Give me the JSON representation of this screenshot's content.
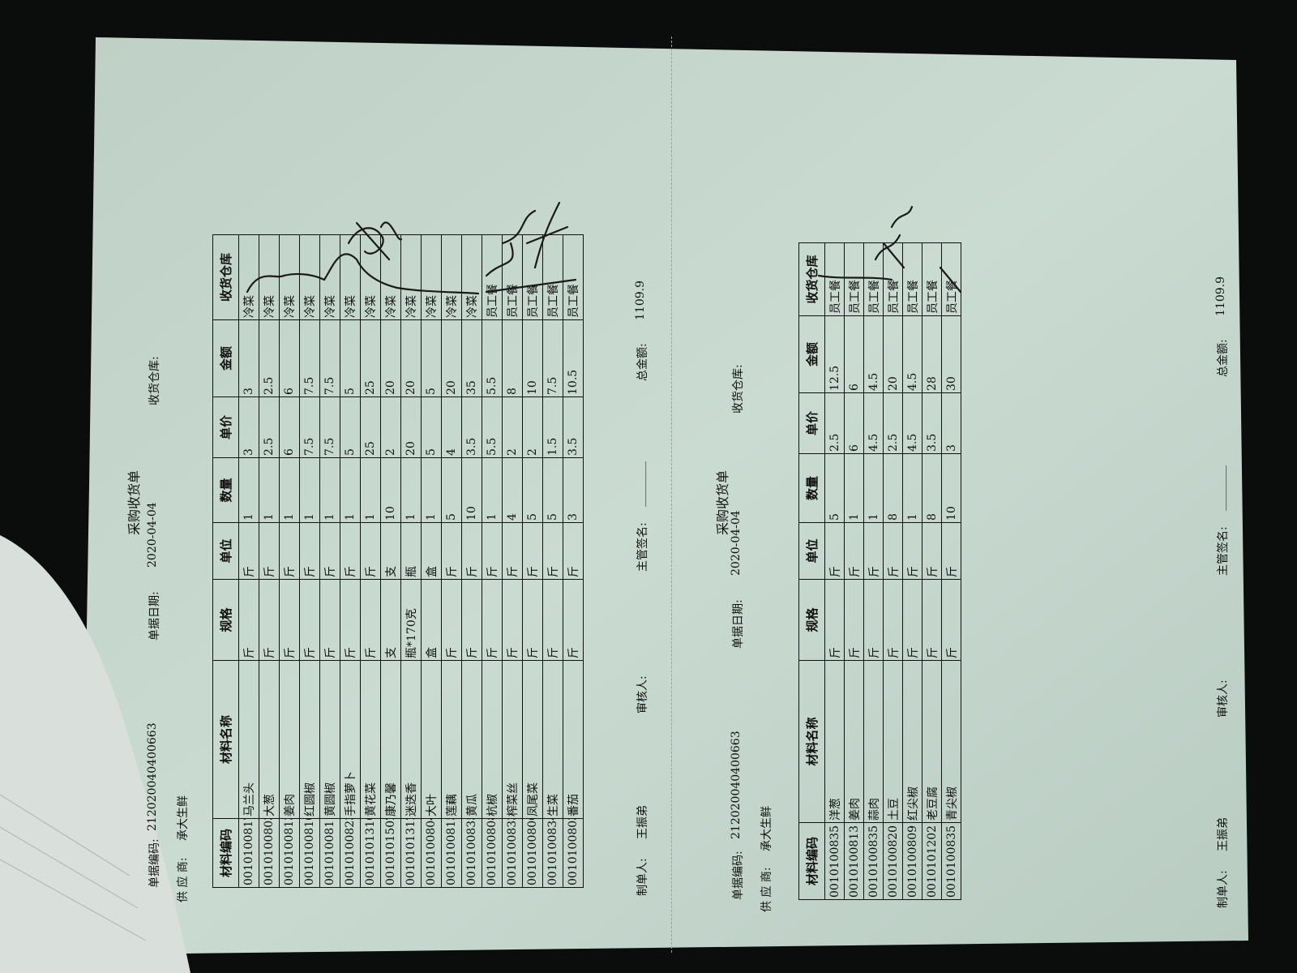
{
  "receipts": [
    {
      "title": "采购收货单",
      "doc_no_label": "单据编码:",
      "doc_no": "212020040400663",
      "date_label": "单据日期:",
      "date": "2020-04-04",
      "warehouse_label": "收货仓库:",
      "supplier_label": "供 应 商:",
      "supplier": "承大生鲜",
      "columns": [
        "材料编码",
        "材料名称",
        "规格",
        "单位",
        "数量",
        "单价",
        "金额",
        "收货仓库"
      ],
      "rows": [
        [
          "0010100817",
          "马兰头",
          "斤",
          "斤",
          "1",
          "3",
          "3",
          "冷菜"
        ],
        [
          "0010100803",
          "大葱",
          "斤",
          "斤",
          "1",
          "2.5",
          "2.5",
          "冷菜"
        ],
        [
          "0010100813",
          "姜肉",
          "斤",
          "斤",
          "1",
          "6",
          "6",
          "冷菜"
        ],
        [
          "0010100810",
          "红圆椒",
          "斤",
          "斤",
          "1",
          "7.5",
          "7.5",
          "冷菜"
        ],
        [
          "0010100811",
          "黄圆椒",
          "斤",
          "斤",
          "1",
          "7.5",
          "7.5",
          "冷菜"
        ],
        [
          "0010100823",
          "手指萝卜",
          "斤",
          "斤",
          "1",
          "5",
          "5",
          "冷菜"
        ],
        [
          "0010101310",
          "黄花菜",
          "斤",
          "斤",
          "1",
          "25",
          "25",
          "冷菜"
        ],
        [
          "0010101502",
          "康乃馨",
          "支",
          "支",
          "10",
          "2",
          "20",
          "冷菜"
        ],
        [
          "0010101312",
          "迷迭香",
          "瓶*170克",
          "瓶",
          "1",
          "20",
          "20",
          "冷菜"
        ],
        [
          "0010100804",
          "大叶",
          "盒",
          "盒",
          "1",
          "5",
          "5",
          "冷菜"
        ],
        [
          "0010100815",
          "莲藕",
          "斤",
          "斤",
          "5",
          "4",
          "20",
          "冷菜"
        ],
        [
          "0010100835",
          "黄瓜",
          "斤",
          "斤",
          "10",
          "3.5",
          "35",
          "冷菜"
        ],
        [
          "0010100808",
          "杭椒",
          "斤",
          "斤",
          "1",
          "5.5",
          "5.5",
          "员工餐"
        ],
        [
          "0010100833",
          "榨菜丝",
          "斤",
          "斤",
          "4",
          "2",
          "8",
          "员工餐"
        ],
        [
          "0010100806",
          "凤尾菜",
          "斤",
          "斤",
          "5",
          "2",
          "10",
          "员工餐"
        ],
        [
          "0010100834",
          "生菜",
          "斤",
          "斤",
          "5",
          "1.5",
          "7.5",
          "员工餐"
        ],
        [
          "0010100803",
          "番茄",
          "斤",
          "斤",
          "3",
          "3.5",
          "10.5",
          "员工餐"
        ]
      ],
      "maker_label": "制单人:",
      "maker": "王振弟",
      "reviewer_label": "审核人:",
      "manager_label": "主管签名:",
      "manager_line": "________",
      "total_label": "总金额:",
      "total": "1109.9"
    },
    {
      "title": "采购收货单",
      "doc_no_label": "单据编码:",
      "doc_no": "212020040400663",
      "date_label": "单据日期:",
      "date": "2020-04-04",
      "warehouse_label": "收货仓库:",
      "supplier_label": "供 应 商:",
      "supplier": "承大生鲜",
      "columns": [
        "材料编码",
        "材料名称",
        "规格",
        "单位",
        "数量",
        "单价",
        "金额",
        "收货仓库"
      ],
      "rows": [
        [
          "0010100835",
          "洋葱",
          "斤",
          "斤",
          "5",
          "2.5",
          "12.5",
          "员工餐"
        ],
        [
          "0010100813",
          "姜肉",
          "斤",
          "斤",
          "1",
          "6",
          "6",
          "员工餐"
        ],
        [
          "0010100835",
          "蒜肉",
          "斤",
          "斤",
          "1",
          "4.5",
          "4.5",
          "员工餐"
        ],
        [
          "0010100820",
          "土豆",
          "斤",
          "斤",
          "8",
          "2.5",
          "20",
          "员工餐"
        ],
        [
          "0010100809",
          "红尖椒",
          "斤",
          "斤",
          "1",
          "4.5",
          "4.5",
          "员工餐"
        ],
        [
          "0010101202",
          "老豆腐",
          "斤",
          "斤",
          "8",
          "3.5",
          "28",
          "员工餐"
        ],
        [
          "0010100835",
          "青尖椒",
          "斤",
          "斤",
          "10",
          "3",
          "30",
          "员工餐"
        ]
      ],
      "maker_label": "制单人:",
      "maker": "王振弟",
      "reviewer_label": "审核人:",
      "manager_label": "主管签名:",
      "manager_line": "________",
      "total_label": "总金额:",
      "total": "1109.9"
    }
  ],
  "colors": {
    "paper": "#c8d8cf",
    "ink": "#111111",
    "background": "#0b0d0c"
  }
}
